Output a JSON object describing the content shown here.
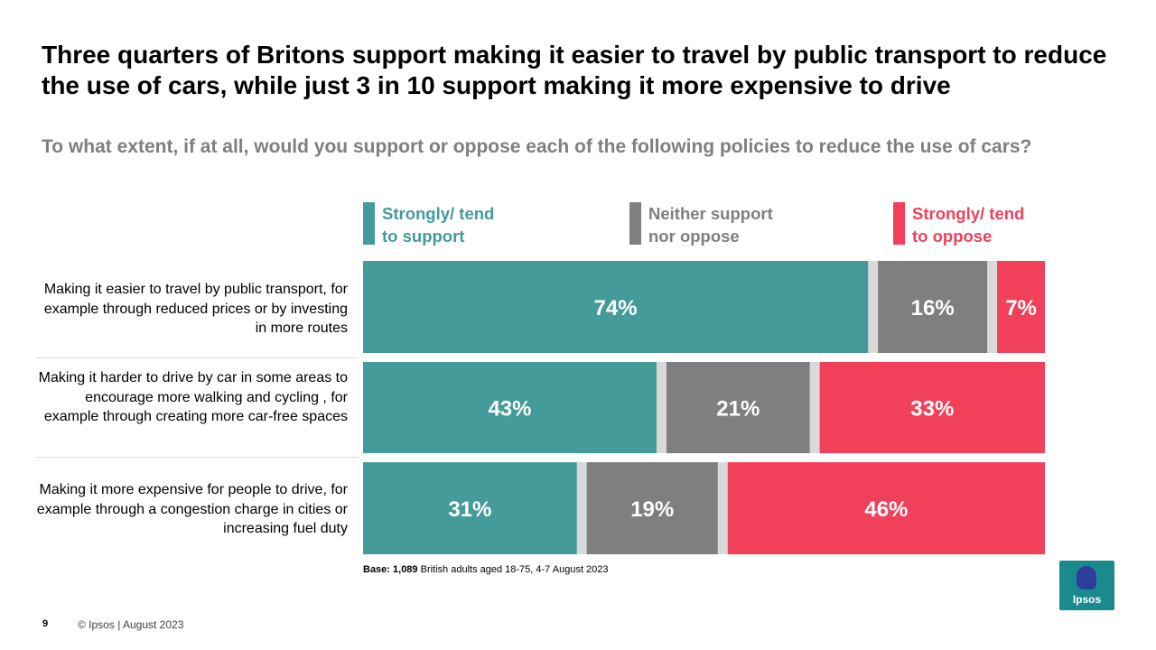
{
  "header": {
    "title": "Three quarters of Britons support making it easier to travel by public transport to reduce the use of cars, while just 3 in 10 support making it more expensive to drive",
    "subtitle": "To what extent, if at all, would you support or oppose each of the following policies to reduce the use of cars?"
  },
  "legend": [
    {
      "line1": "Strongly/ tend",
      "line2": "to support",
      "color": "#449b99"
    },
    {
      "line1": "Neither support",
      "line2": "nor oppose",
      "color": "#7f7f7f"
    },
    {
      "line1": "Strongly/ tend",
      "line2": "to oppose",
      "color": "#f0405a"
    }
  ],
  "chart_data": {
    "type": "bar",
    "orientation": "horizontal",
    "stacked": true,
    "categories": [
      "Making it easier to travel by public transport, for example through reduced prices or by investing in more routes",
      "Making it harder to drive by car in some areas to encourage more walking and cycling , for example through creating more car-free spaces",
      "Making it more expensive for people to drive, for example through a congestion charge in cities or increasing fuel duty"
    ],
    "series": [
      {
        "name": "Strongly/ tend to support",
        "values": [
          74,
          43,
          31
        ],
        "color": "#449b99"
      },
      {
        "name": "Neither support nor oppose",
        "values": [
          16,
          21,
          19
        ],
        "color": "#7f7f7f"
      },
      {
        "name": "Strongly/ tend to oppose",
        "values": [
          7,
          33,
          46
        ],
        "color": "#f0405a"
      }
    ],
    "gap_color": "#d9d9d9",
    "value_labels": [
      [
        "74%",
        "16%",
        "7%"
      ],
      [
        "43%",
        "21%",
        "33%"
      ],
      [
        "31%",
        "19%",
        "46%"
      ]
    ]
  },
  "footnote": {
    "base_bold": "Base: 1,089",
    "base_rest": " British adults aged 18-75, 4-7 August 2023"
  },
  "footer": {
    "page": "9",
    "copyright": "© Ipsos | August 2023",
    "logo_text": "Ipsos"
  }
}
